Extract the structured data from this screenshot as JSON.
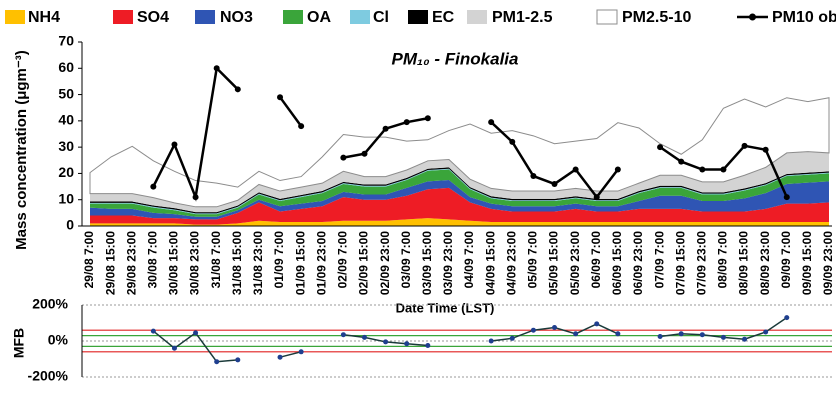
{
  "chart_data": [
    {
      "type": "area",
      "stacked": true,
      "title": "PM₁₀ - Finokalia",
      "y_label": "Mass concentration (μgm⁻³)",
      "x_label": "Date Time (LST)",
      "categories": [
        "29/08 7:00",
        "29/08 15:00",
        "29/08 23:00",
        "30/08 7:00",
        "30/08 15:00",
        "30/08 23:00",
        "31/08 7:00",
        "31/08 15:00",
        "31/08 23:00",
        "01/09 7:00",
        "01/09 15:00",
        "01/09 23:00",
        "02/09 7:00",
        "02/09 15:00",
        "02/09 23:00",
        "03/09 7:00",
        "03/09 15:00",
        "03/09 23:00",
        "04/09 7:00",
        "04/09 15:00",
        "04/09 23:00",
        "05/09 7:00",
        "05/09 15:00",
        "05/09 23:00",
        "06/09 7:00",
        "06/09 15:00",
        "06/09 23:00",
        "07/09 7:00",
        "07/09 15:00",
        "07/09 23:00",
        "08/09 7:00",
        "08/09 15:00",
        "08/09 23:00",
        "09/09 7:00",
        "09/09 15:00",
        "09/09 23:00"
      ],
      "ylim": [
        0,
        70
      ],
      "yticks": [
        0,
        10,
        20,
        30,
        40,
        50,
        60,
        70
      ],
      "series": [
        {
          "name": "NH4",
          "type": "area",
          "color": "#ffc000",
          "values": [
            1,
            1,
            1,
            1,
            1,
            0.5,
            0.5,
            1,
            2,
            1.5,
            1.5,
            1.5,
            2,
            2,
            2,
            2.5,
            3,
            2.5,
            2,
            1.5,
            1.5,
            1.5,
            1.5,
            1.5,
            1.5,
            1.5,
            1.5,
            1.5,
            1.5,
            1.5,
            1.5,
            1.5,
            1.5,
            1.5,
            1.5,
            1.5
          ]
        },
        {
          "name": "SO4",
          "type": "area",
          "color": "#ee1c25",
          "values": [
            3,
            3,
            3,
            2,
            2,
            2,
            2,
            4,
            7,
            4,
            5,
            6,
            9,
            8,
            8,
            9,
            11,
            12,
            7,
            5,
            4,
            4,
            4,
            5,
            4,
            4,
            5,
            5,
            5,
            4,
            4,
            4,
            5,
            7,
            7,
            7.5
          ]
        },
        {
          "name": "NO3",
          "type": "area",
          "color": "#2f55b4",
          "values": [
            3,
            2.5,
            2.5,
            2,
            1.5,
            1,
            1,
            1,
            1,
            2,
            2,
            2,
            2,
            2,
            2,
            3,
            3,
            3,
            2,
            2,
            2,
            2,
            2,
            2,
            2,
            2,
            3,
            5,
            5,
            4,
            4,
            5,
            6,
            7.5,
            8,
            8
          ]
        },
        {
          "name": "OA",
          "type": "area",
          "color": "#3aa53a",
          "values": [
            1.5,
            2,
            2,
            2,
            1.5,
            1,
            1,
            1,
            2,
            2,
            2.5,
            3,
            3,
            3,
            3,
            3,
            4,
            4,
            3,
            2,
            2,
            2,
            2,
            2,
            2,
            2,
            3,
            3,
            3,
            2.5,
            2.5,
            3,
            3,
            3,
            3,
            3
          ]
        },
        {
          "name": "Cl",
          "type": "area",
          "color": "#7ecbe0",
          "values": [
            0.3,
            0.3,
            0.3,
            0.3,
            0.3,
            0.3,
            0.3,
            0.3,
            0.3,
            0.3,
            0.3,
            0.3,
            0.3,
            0.3,
            0.3,
            0.3,
            0.3,
            0.3,
            0.3,
            0.3,
            0.3,
            0.3,
            0.3,
            0.3,
            0.3,
            0.3,
            0.3,
            0.3,
            0.3,
            0.3,
            0.3,
            0.3,
            0.3,
            0.3,
            0.3,
            0.3
          ]
        },
        {
          "name": "EC",
          "type": "area",
          "color": "#000000",
          "values": [
            0.5,
            0.5,
            0.5,
            0.5,
            0.5,
            0.5,
            0.5,
            0.5,
            0.5,
            0.5,
            0.5,
            0.5,
            0.5,
            0.5,
            0.5,
            0.5,
            0.5,
            0.5,
            0.5,
            0.5,
            0.5,
            0.5,
            0.5,
            0.5,
            0.5,
            0.5,
            0.5,
            0.5,
            0.5,
            0.5,
            0.5,
            0.5,
            0.5,
            0.5,
            0.5,
            0.5
          ]
        },
        {
          "name": "PM1-2.5",
          "type": "area",
          "color": "#d3d3d3",
          "values": [
            3,
            3,
            3,
            3,
            2,
            2,
            2,
            2,
            3,
            3,
            3,
            3,
            4,
            3,
            3,
            3,
            3,
            3,
            3,
            3,
            3,
            3,
            3,
            3,
            3,
            3,
            3,
            4,
            4,
            4,
            4,
            5,
            6,
            8,
            8,
            7
          ]
        },
        {
          "name": "PM2.5-10",
          "type": "area",
          "color": "#ffffff",
          "edge": "#8c8c8c",
          "values": [
            8,
            14,
            18,
            14,
            12,
            10,
            9,
            5,
            5,
            4,
            4,
            10,
            14,
            15,
            15,
            11,
            8,
            11,
            21,
            21,
            23,
            21,
            18,
            18,
            20,
            26,
            21,
            12,
            8,
            16,
            28,
            29,
            23,
            21,
            19,
            21
          ]
        },
        {
          "name": "PM10 obs.",
          "type": "line",
          "color": "#000000",
          "values": [
            null,
            null,
            null,
            15,
            31,
            11,
            60,
            52,
            null,
            49,
            38,
            null,
            26,
            27.5,
            37,
            39.5,
            41,
            null,
            null,
            39.5,
            32,
            19,
            16,
            21.5,
            11,
            21.5,
            null,
            30,
            24.5,
            21.5,
            21.5,
            30.5,
            29,
            11,
            null,
            null
          ]
        }
      ]
    },
    {
      "type": "line",
      "y_label": "MFB",
      "ylim": [
        -200,
        200
      ],
      "yticks": [
        {
          "value": -200,
          "label": "-200%"
        },
        {
          "value": 0,
          "label": "0%"
        },
        {
          "value": 200,
          "label": "200%"
        }
      ],
      "color": "#1a3a3a",
      "hlines": [
        {
          "value": 60,
          "color": "#e02020"
        },
        {
          "value": -60,
          "color": "#e02020"
        },
        {
          "value": 30,
          "color": "#3aa53a"
        },
        {
          "value": -30,
          "color": "#3aa53a"
        }
      ],
      "values": [
        null,
        null,
        null,
        55,
        -40,
        45,
        -115,
        -105,
        null,
        -90,
        -60,
        null,
        35,
        20,
        -5,
        -15,
        -25,
        null,
        null,
        0,
        15,
        60,
        75,
        40,
        95,
        40,
        null,
        25,
        40,
        35,
        20,
        10,
        50,
        130,
        null,
        null
      ]
    }
  ]
}
